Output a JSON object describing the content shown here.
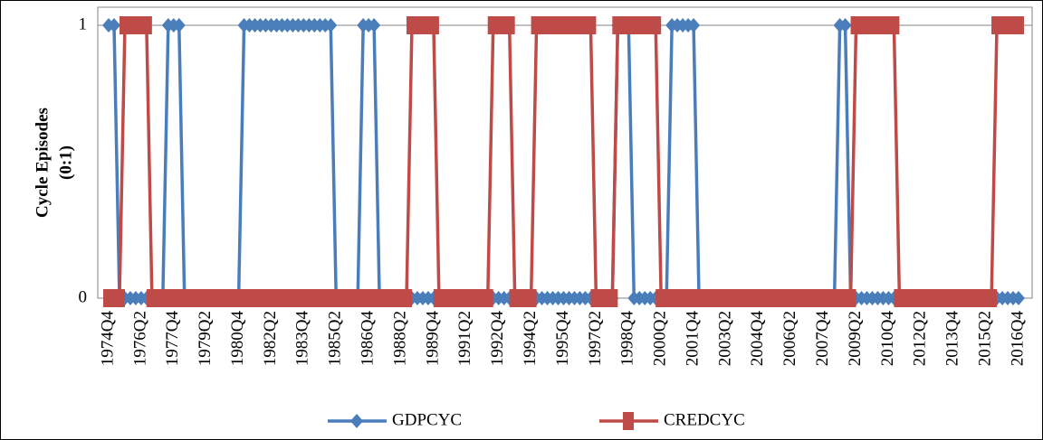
{
  "chart_data": {
    "type": "line",
    "y_label": [
      "Cycle Episodes",
      "(0:1)"
    ],
    "categories": [
      "1974Q4",
      null,
      null,
      null,
      null,
      null,
      "1976Q2",
      null,
      null,
      null,
      null,
      null,
      "1977Q4",
      null,
      null,
      null,
      null,
      null,
      "1979Q2",
      null,
      null,
      null,
      null,
      null,
      "1980Q4",
      null,
      null,
      null,
      null,
      null,
      "1982Q2",
      null,
      null,
      null,
      null,
      null,
      "1983Q4",
      null,
      null,
      null,
      null,
      null,
      "1985Q2",
      null,
      null,
      null,
      null,
      null,
      "1986Q4",
      null,
      null,
      null,
      null,
      null,
      "1988Q2",
      null,
      null,
      null,
      null,
      null,
      "1989Q4",
      null,
      null,
      null,
      null,
      null,
      "1991Q2",
      null,
      null,
      null,
      null,
      null,
      "1992Q4",
      null,
      null,
      null,
      null,
      null,
      "1994Q2",
      null,
      null,
      null,
      null,
      null,
      "1995Q4",
      null,
      null,
      null,
      null,
      null,
      "1997Q2",
      null,
      null,
      null,
      null,
      null,
      "1998Q4",
      null,
      null,
      null,
      null,
      null,
      "2000Q2",
      null,
      null,
      null,
      null,
      null,
      "2001Q4",
      null,
      null,
      null,
      null,
      null,
      "2003Q2",
      null,
      null,
      null,
      null,
      null,
      "2004Q4",
      null,
      null,
      null,
      null,
      null,
      "2006Q2",
      null,
      null,
      null,
      null,
      null,
      "2007Q4",
      null,
      null,
      null,
      null,
      null,
      "2009Q2",
      null,
      null,
      null,
      null,
      null,
      "2010Q4",
      null,
      null,
      null,
      null,
      null,
      "2012Q2",
      null,
      null,
      null,
      null,
      null,
      "2013Q4",
      null,
      null,
      null,
      null,
      null,
      "2015Q2",
      null,
      null,
      null,
      null,
      null,
      "2016Q4"
    ],
    "series": [
      {
        "name": "GDPCYC",
        "color": "#4a7ebb",
        "marker": "diamond",
        "values": [
          1,
          1,
          0,
          0,
          0,
          0,
          0,
          0,
          0,
          0,
          0,
          1,
          1,
          1,
          0,
          0,
          0,
          0,
          0,
          0,
          0,
          0,
          0,
          0,
          0,
          1,
          1,
          1,
          1,
          1,
          1,
          1,
          1,
          1,
          1,
          1,
          1,
          1,
          1,
          1,
          1,
          1,
          0,
          0,
          0,
          0,
          0,
          1,
          1,
          1,
          0,
          0,
          0,
          0,
          0,
          0,
          0,
          0,
          0,
          0,
          0,
          0,
          0,
          0,
          0,
          0,
          0,
          0,
          0,
          0,
          0,
          0,
          0,
          0,
          0,
          0,
          0,
          0,
          0,
          0,
          0,
          0,
          0,
          0,
          0,
          0,
          0,
          0,
          0,
          0,
          0,
          0,
          0,
          0,
          1,
          1,
          1,
          0,
          0,
          0,
          0,
          0,
          0,
          0,
          1,
          1,
          1,
          1,
          1,
          0,
          0,
          0,
          0,
          0,
          0,
          0,
          0,
          0,
          0,
          0,
          0,
          0,
          0,
          0,
          0,
          0,
          0,
          0,
          0,
          0,
          0,
          0,
          0,
          0,
          0,
          1,
          1,
          0,
          0,
          0,
          0,
          0,
          0,
          0,
          0,
          0,
          0,
          0,
          0,
          0,
          0,
          0,
          0,
          0,
          0,
          0,
          0,
          0,
          0,
          0,
          0,
          0,
          0,
          0,
          0,
          0,
          0,
          0,
          0
        ]
      },
      {
        "name": "CREDCYC",
        "color": "#be4b48",
        "marker": "square",
        "values": [
          0,
          0,
          0,
          1,
          1,
          1,
          1,
          1,
          0,
          0,
          0,
          0,
          0,
          0,
          0,
          0,
          0,
          0,
          0,
          0,
          0,
          0,
          0,
          0,
          0,
          0,
          0,
          0,
          0,
          0,
          0,
          0,
          0,
          0,
          0,
          0,
          0,
          0,
          0,
          0,
          0,
          0,
          0,
          0,
          0,
          0,
          0,
          0,
          0,
          0,
          0,
          0,
          0,
          0,
          0,
          0,
          1,
          1,
          1,
          1,
          1,
          0,
          0,
          0,
          0,
          0,
          0,
          0,
          0,
          0,
          0,
          1,
          1,
          1,
          1,
          0,
          0,
          0,
          0,
          1,
          1,
          1,
          1,
          1,
          1,
          1,
          1,
          1,
          1,
          1,
          0,
          0,
          0,
          0,
          1,
          1,
          1,
          1,
          1,
          1,
          1,
          1,
          0,
          0,
          0,
          0,
          0,
          0,
          0,
          0,
          0,
          0,
          0,
          0,
          0,
          0,
          0,
          0,
          0,
          0,
          0,
          0,
          0,
          0,
          0,
          0,
          0,
          0,
          0,
          0,
          0,
          0,
          0,
          0,
          0,
          0,
          0,
          0,
          1,
          1,
          1,
          1,
          1,
          1,
          1,
          1,
          0,
          0,
          0,
          0,
          0,
          0,
          0,
          0,
          0,
          0,
          0,
          0,
          0,
          0,
          0,
          0,
          0,
          0,
          1,
          1,
          1,
          1,
          1
        ]
      }
    ],
    "ylim": [
      0,
      1
    ],
    "yticks": [
      0,
      1
    ],
    "grid": true,
    "legend": "bottom"
  }
}
